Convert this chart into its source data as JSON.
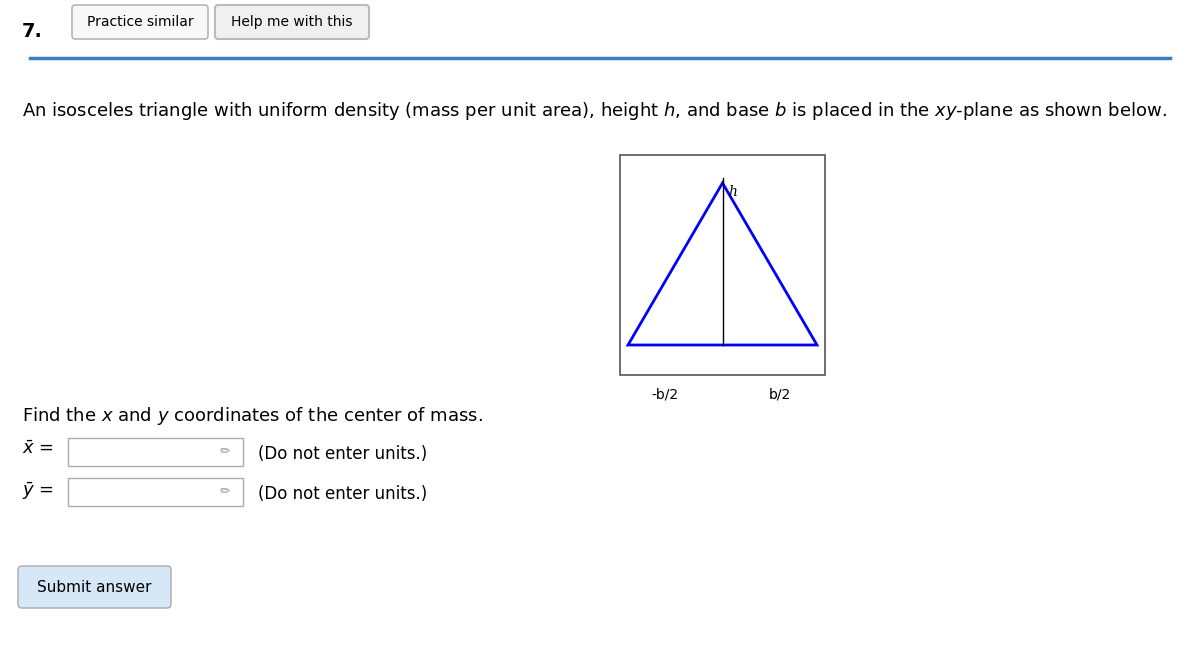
{
  "problem_number": "7.",
  "btn1_text": "Practice similar",
  "btn2_text": "Help me with this",
  "do_not_enter": "(Do not enter units.)",
  "submit_btn": "Submit answer",
  "header_line_color": "#3a7ebf",
  "background_color": "#ffffff",
  "triangle_color": "#0000ff",
  "label_neg_b2": "-b/2",
  "label_b2": "b/2",
  "label_h": "h",
  "desc_text": "An isosceles triangle with uniform density (mass per unit area), height $h$, and base $b$ is placed in the $xy$-plane as shown below.",
  "find_text": "Find the $x$ and $y$ coordinates of the center of mass.",
  "xbar_label": "$\\bar{x}$ =",
  "ybar_label": "$\\bar{y}$ ="
}
